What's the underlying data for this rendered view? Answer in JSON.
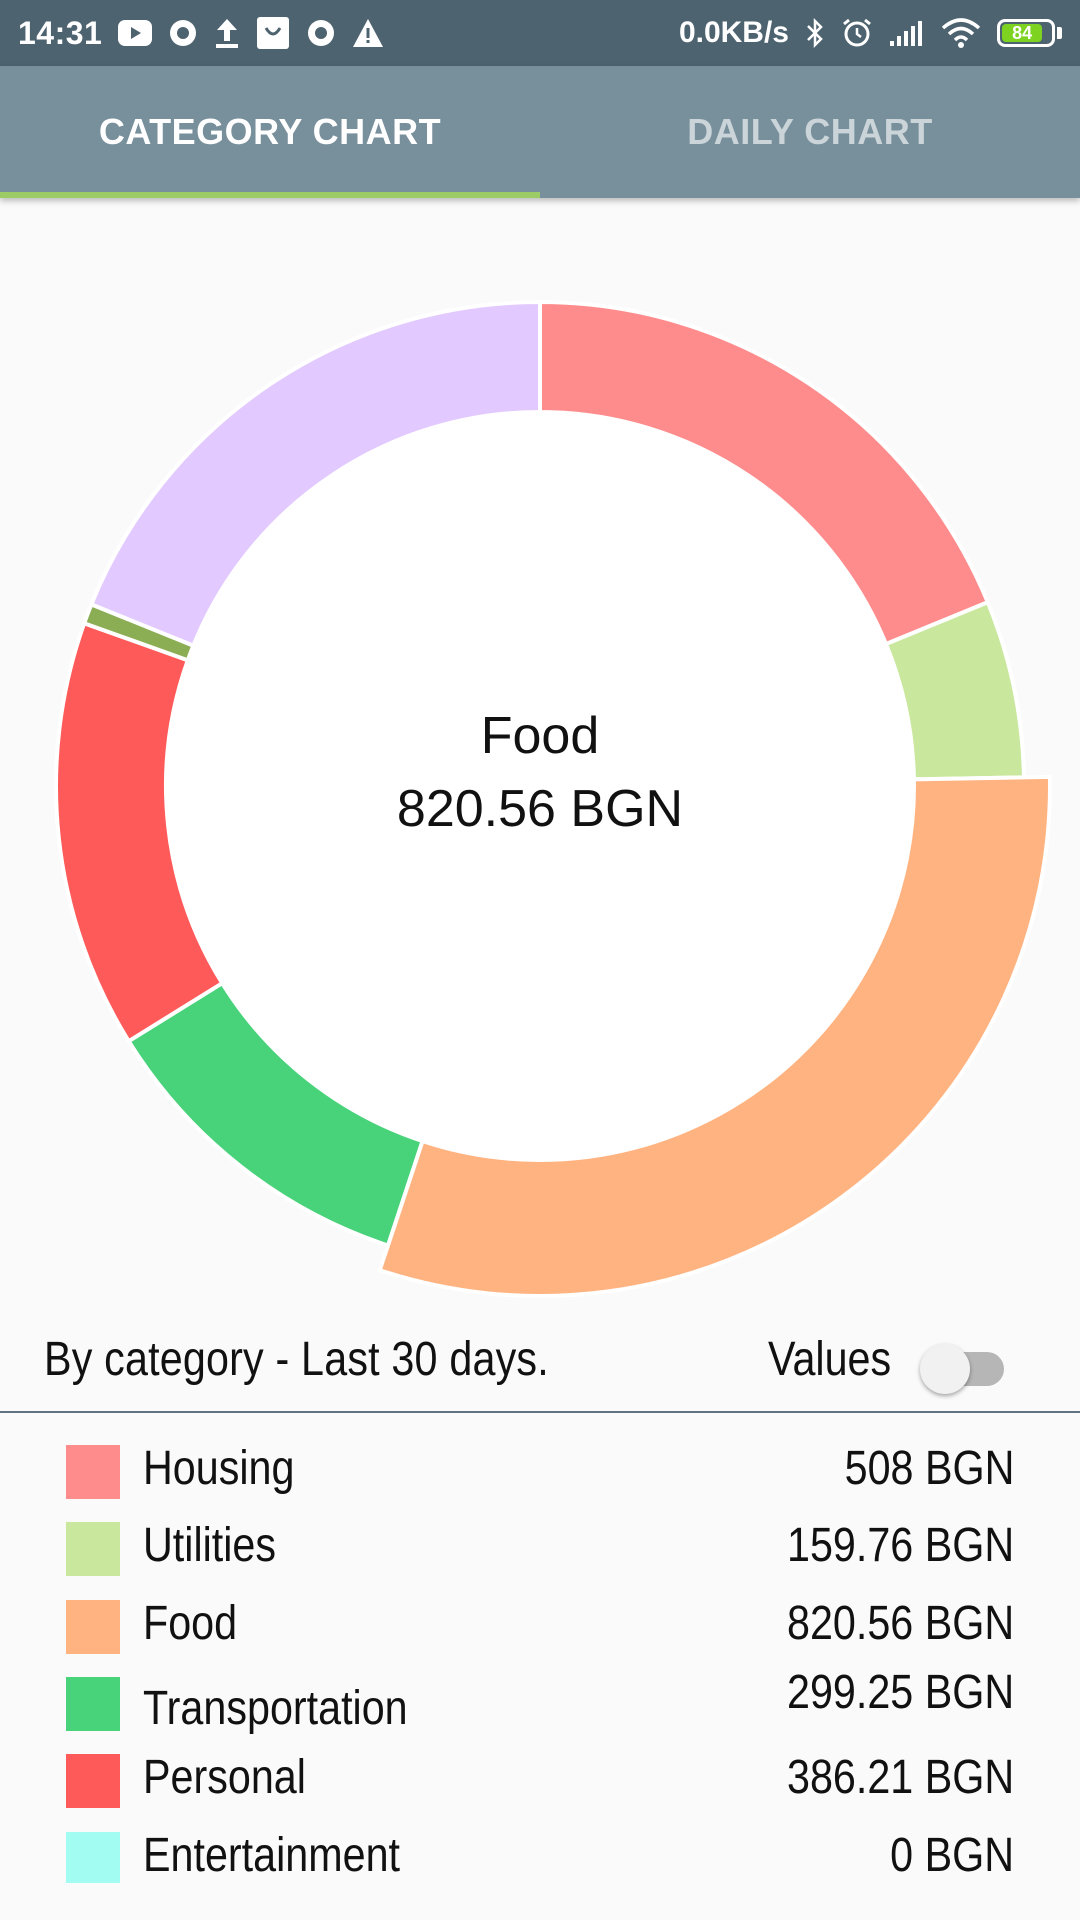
{
  "status_bar": {
    "time": "14:31",
    "network_speed": "0.0KB/s",
    "battery_level": "84",
    "left_icons": [
      "youtube-icon",
      "record-icon",
      "upload-icon",
      "shopping-bag-icon",
      "record-icon",
      "warning-icon"
    ],
    "right_icons": [
      "bluetooth-icon",
      "alarm-icon",
      "signal-icon",
      "wifi-icon",
      "battery-icon"
    ]
  },
  "tabs": [
    {
      "label": "CATEGORY CHART",
      "active": true
    },
    {
      "label": "DAILY CHART",
      "active": false
    }
  ],
  "colors": {
    "status_bar": "#4e6370",
    "tab_bar": "#78909c",
    "tab_indicator": "#9ccc65"
  },
  "chart_data": {
    "type": "pie",
    "variant": "donut",
    "currency": "BGN",
    "selected": "Food",
    "center_name": "Food",
    "center_value": "820.56 BGN",
    "slices": [
      {
        "label": "Housing",
        "value": 508,
        "color": "#ff8c8c"
      },
      {
        "label": "Utilities",
        "value": 159.76,
        "color": "#c9e79d"
      },
      {
        "label": "Food",
        "value": 820.56,
        "color": "#ffb380"
      },
      {
        "label": "Transportation",
        "value": 299.25,
        "color": "#48d27a"
      },
      {
        "label": "Personal",
        "value": 386.21,
        "color": "#ff5a5a"
      },
      {
        "label": "Entertainment",
        "value": 0,
        "color": "#a2fcf2"
      },
      {
        "label": "",
        "value": 18,
        "color": "#8bad54"
      },
      {
        "label": "",
        "value": 510,
        "color": "#e2c9ff"
      }
    ]
  },
  "summary": {
    "title": "By category - Last 30 days.",
    "values_toggle_label": "Values",
    "values_toggle_on": false
  },
  "legend": [
    {
      "name": "Housing",
      "amount": "508 BGN",
      "color": "#ff8c8c"
    },
    {
      "name": "Utilities",
      "amount": "159.76 BGN",
      "color": "#c9e79d"
    },
    {
      "name": "Food",
      "amount": "820.56 BGN",
      "color": "#ffb380"
    },
    {
      "name": "Transportation",
      "amount": "299.25 BGN",
      "color": "#48d27a"
    },
    {
      "name": "Personal",
      "amount": "386.21 BGN",
      "color": "#ff5a5a"
    },
    {
      "name": "Entertainment",
      "amount": "0 BGN",
      "color": "#a2fcf2"
    }
  ]
}
